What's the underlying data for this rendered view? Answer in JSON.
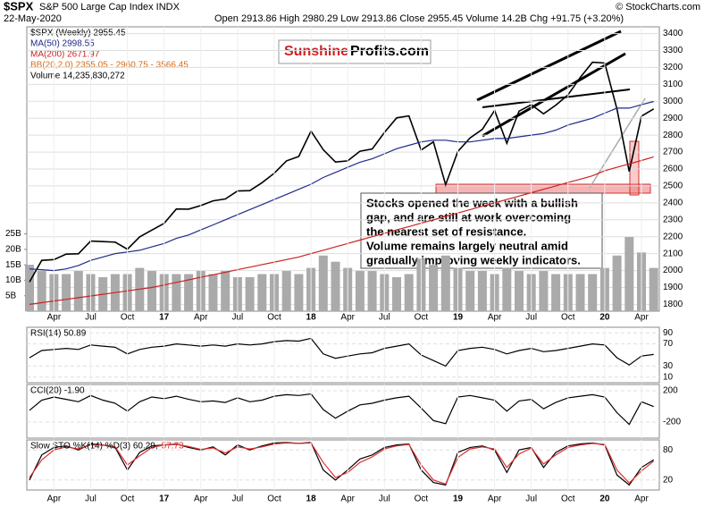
{
  "header": {
    "symbol": "$SPX",
    "name": "S&P 500 Large Cap Index INDX",
    "date": "22-May-2020",
    "quote": "Open 2913.86 High 2980.29 Low 2913.86 Close 2955.45 Volume 14.2B Chg +91.75 (+3.20%)",
    "credit": "© StockCharts.com"
  },
  "legend": [
    "$SPX (Weekly) 2955.45",
    "MA(50) 2998.55",
    "MA(200) 2671.97",
    "BB(20,2.0) 2355.05 - 2960.75 - 3566.45",
    "Volume 14,235,830,272"
  ],
  "logo": {
    "left": "Sunshine",
    "right": "Profits.com"
  },
  "annotation": [
    "Stocks opened the week with a bullish",
    "gap, and are still at work overcoming",
    "the nearest set of resistance.",
    "Volume remains largely neutral amid",
    "gradually improving weekly indicators."
  ],
  "chart_data": [
    {
      "type": "line",
      "categories": [
        null,
        null,
        "Apr",
        null,
        null,
        "Jul",
        null,
        null,
        "Oct",
        null,
        null,
        "17",
        null,
        null,
        "Apr",
        null,
        null,
        "Jul",
        null,
        null,
        "Oct",
        null,
        null,
        "18",
        null,
        null,
        "Apr",
        null,
        null,
        "Jul",
        null,
        null,
        "Oct",
        null,
        null,
        "19",
        null,
        null,
        "Apr",
        null,
        null,
        "Jul",
        null,
        null,
        "Oct",
        null,
        null,
        "20",
        null,
        null,
        "Apr",
        null
      ],
      "ylim": [
        1760,
        3440
      ],
      "yticks": [
        1800,
        1900,
        2000,
        2100,
        2200,
        2300,
        2400,
        2500,
        2600,
        2700,
        2800,
        2900,
        3000,
        3100,
        3200,
        3300,
        3400
      ],
      "y2lim": [
        0,
        92
      ],
      "y2ticks": [
        {
          "value": 5,
          "label": "5B"
        },
        {
          "value": 10,
          "label": "10B"
        },
        {
          "value": 15,
          "label": "15B"
        },
        {
          "value": 20,
          "label": "20B"
        },
        {
          "value": 25,
          "label": "25B"
        }
      ],
      "series": [
        {
          "name": "$SPX",
          "color": "#000000",
          "values": [
            1932,
            2060,
            2065,
            2097,
            2099,
            2174,
            2171,
            2168,
            2126,
            2199,
            2239,
            2279,
            2364,
            2363,
            2384,
            2412,
            2423,
            2470,
            2472,
            2519,
            2575,
            2648,
            2674,
            2824,
            2714,
            2641,
            2648,
            2705,
            2718,
            2816,
            2902,
            2914,
            2712,
            2760,
            2507,
            2704,
            2784,
            2834,
            2946,
            2752,
            2942,
            2980,
            2926,
            2977,
            3038,
            3141,
            3231,
            3226,
            2954,
            2585,
            2912,
            2955
          ]
        },
        {
          "name": "MA(50)",
          "color": "#1f2a8a",
          "values": [
            2010,
            2005,
            2000,
            2010,
            2030,
            2060,
            2080,
            2100,
            2110,
            2120,
            2140,
            2160,
            2190,
            2210,
            2240,
            2270,
            2300,
            2330,
            2360,
            2390,
            2420,
            2450,
            2480,
            2510,
            2550,
            2580,
            2610,
            2640,
            2660,
            2690,
            2720,
            2740,
            2760,
            2770,
            2770,
            2760,
            2760,
            2770,
            2780,
            2780,
            2790,
            2800,
            2810,
            2830,
            2860,
            2880,
            2900,
            2930,
            2960,
            2960,
            2980,
            2999
          ]
        },
        {
          "name": "MA(200)",
          "color": "#cc2222",
          "values": [
            1800,
            1810,
            1820,
            1830,
            1840,
            1850,
            1860,
            1870,
            1880,
            1890,
            1900,
            1915,
            1930,
            1945,
            1960,
            1975,
            1990,
            2005,
            2020,
            2035,
            2050,
            2065,
            2080,
            2100,
            2120,
            2140,
            2160,
            2180,
            2200,
            2220,
            2240,
            2260,
            2280,
            2300,
            2320,
            2340,
            2360,
            2380,
            2400,
            2420,
            2440,
            2460,
            2480,
            2500,
            2520,
            2540,
            2560,
            2590,
            2610,
            2630,
            2650,
            2672
          ]
        },
        {
          "name": "Volume",
          "type": "bar",
          "axis": "y2",
          "color": "#aaaaaa",
          "values": [
            15,
            13,
            12,
            12,
            13,
            12,
            11,
            12,
            12,
            14,
            13,
            12,
            12,
            12,
            13,
            12,
            13,
            11,
            11,
            12,
            12,
            13,
            12,
            14,
            18,
            16,
            14,
            13,
            13,
            12,
            11,
            12,
            17,
            15,
            18,
            14,
            13,
            13,
            12,
            14,
            13,
            12,
            13,
            12,
            12,
            12,
            12,
            14,
            18,
            24,
            19,
            14
          ]
        }
      ]
    },
    {
      "type": "line",
      "title": "RSI(14) 50.89",
      "ylim": [
        0,
        100
      ],
      "yticks": [
        10,
        30,
        70,
        90
      ],
      "series": [
        {
          "name": "RSI",
          "color": "#000000",
          "values": [
            45,
            58,
            60,
            62,
            60,
            68,
            66,
            64,
            52,
            60,
            64,
            66,
            70,
            68,
            66,
            68,
            66,
            70,
            68,
            70,
            74,
            76,
            75,
            80,
            52,
            44,
            48,
            52,
            54,
            62,
            66,
            70,
            50,
            40,
            30,
            58,
            62,
            64,
            60,
            52,
            58,
            62,
            56,
            58,
            62,
            66,
            70,
            68,
            45,
            32,
            48,
            50.89
          ]
        }
      ]
    },
    {
      "type": "line",
      "title": "CCI(20) -1.90",
      "ylim": [
        -405,
        280
      ],
      "yticks": [
        -200,
        200
      ],
      "series": [
        {
          "name": "CCI",
          "color": "#000000",
          "values": [
            -50,
            80,
            120,
            90,
            60,
            140,
            80,
            40,
            -60,
            60,
            120,
            100,
            130,
            90,
            60,
            70,
            50,
            110,
            60,
            80,
            130,
            150,
            140,
            160,
            -40,
            -150,
            -60,
            20,
            40,
            80,
            110,
            130,
            -20,
            -180,
            -220,
            120,
            140,
            110,
            80,
            -60,
            70,
            90,
            -30,
            50,
            110,
            130,
            150,
            120,
            -80,
            -230,
            60,
            -1.9
          ]
        }
      ]
    },
    {
      "type": "line",
      "title": "Slow STO %K(14) %D(3) 60.29,",
      "subtitle": "57.73",
      "ylim": [
        0,
        100
      ],
      "yticks": [
        20,
        80
      ],
      "series": [
        {
          "name": "%K",
          "color": "#000000",
          "values": [
            20,
            70,
            85,
            88,
            80,
            92,
            90,
            85,
            40,
            75,
            88,
            90,
            92,
            85,
            80,
            86,
            70,
            90,
            80,
            88,
            94,
            95,
            93,
            95,
            40,
            20,
            40,
            62,
            70,
            85,
            90,
            92,
            40,
            15,
            10,
            75,
            85,
            88,
            80,
            35,
            80,
            85,
            45,
            75,
            88,
            92,
            94,
            90,
            30,
            10,
            45,
            60.29
          ]
        },
        {
          "name": "%D",
          "color": "#e03030",
          "values": [
            25,
            60,
            80,
            86,
            82,
            90,
            90,
            86,
            50,
            68,
            85,
            90,
            91,
            87,
            81,
            84,
            74,
            86,
            82,
            86,
            92,
            94,
            93,
            94,
            55,
            25,
            35,
            55,
            66,
            82,
            88,
            91,
            50,
            20,
            12,
            65,
            82,
            86,
            82,
            45,
            72,
            84,
            52,
            70,
            85,
            90,
            93,
            91,
            40,
            14,
            38,
            57.73
          ]
        }
      ]
    }
  ]
}
